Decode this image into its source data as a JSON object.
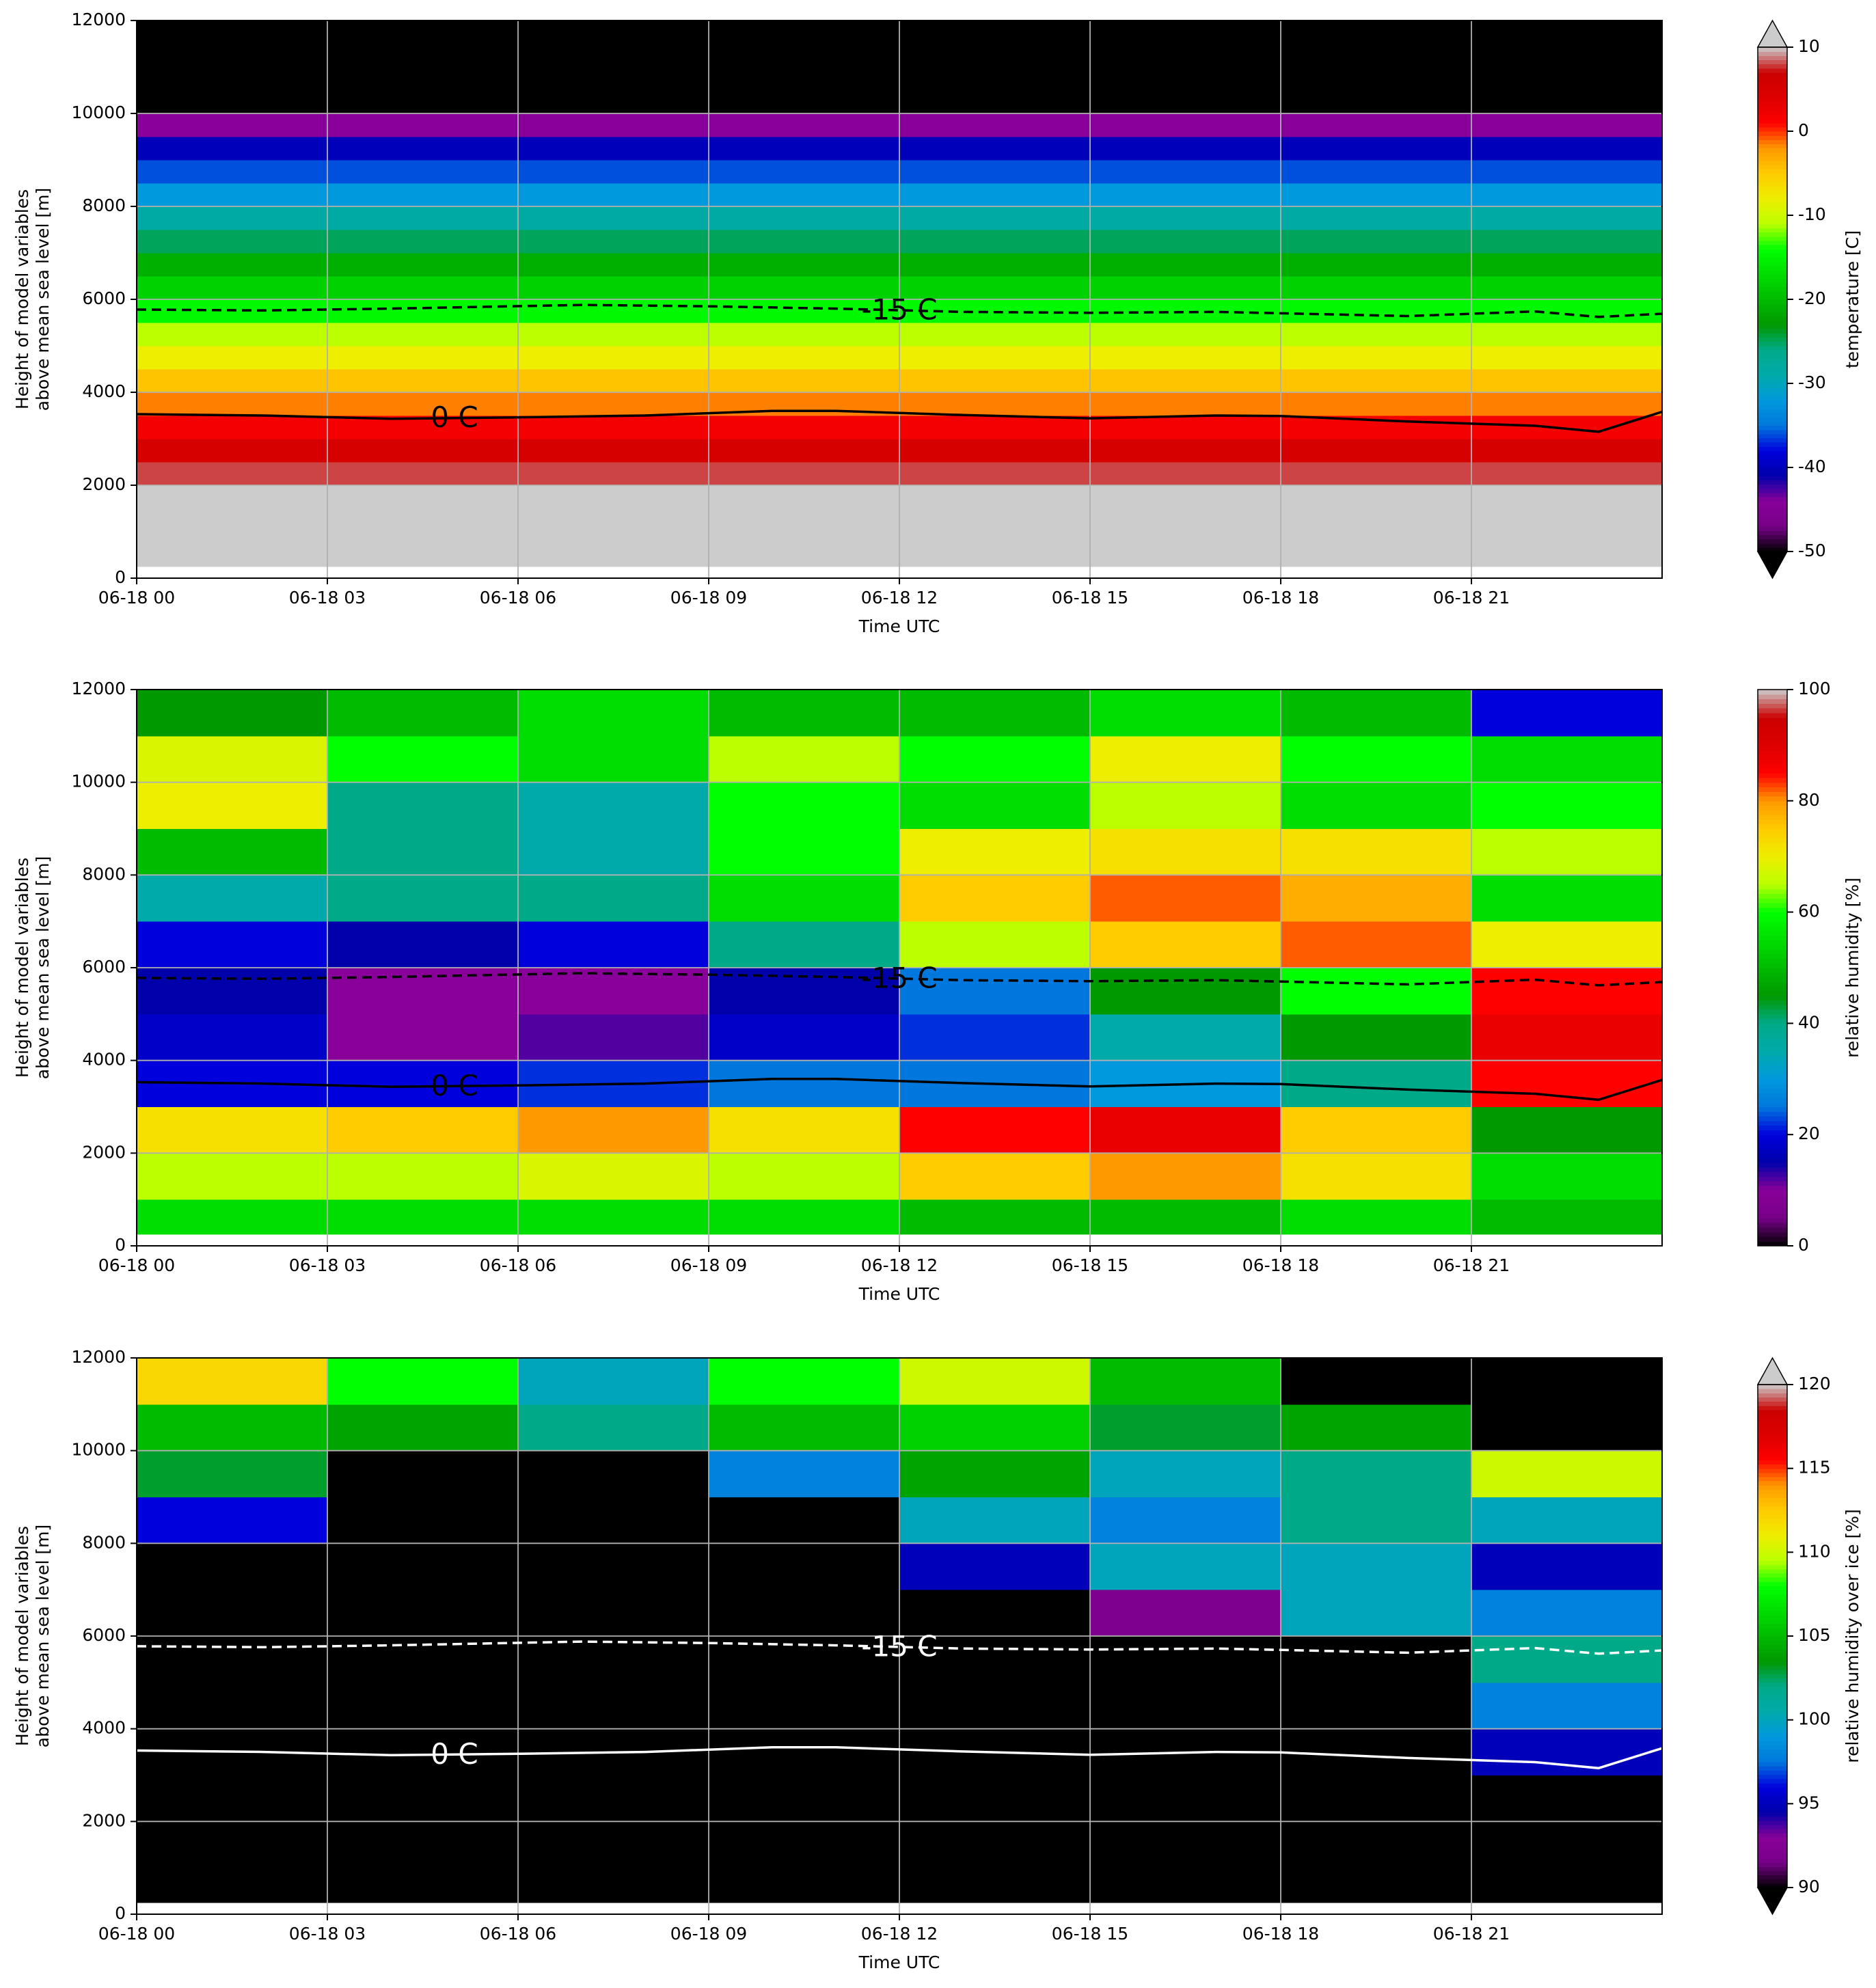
{
  "chart_data": [
    {
      "type": "heatmap",
      "x_label": "Time UTC",
      "y_label": [
        "Height of model variables",
        "above mean sea level [m]"
      ],
      "colorbar_label": "temperature [C]",
      "clim": [
        -50,
        10
      ],
      "cticks": [
        -50,
        -40,
        -30,
        -20,
        -10,
        0,
        10
      ],
      "extend": "both",
      "xlim": [
        0,
        24
      ],
      "ylim": [
        0,
        12000
      ],
      "yticks": [
        0,
        2000,
        4000,
        6000,
        8000,
        10000,
        12000
      ],
      "xticks": [
        {
          "value": 0,
          "label": "06-18 00"
        },
        {
          "value": 3,
          "label": "06-18 03"
        },
        {
          "value": 6,
          "label": "06-18 06"
        },
        {
          "value": 9,
          "label": "06-18 09"
        },
        {
          "value": 12,
          "label": "06-18 12"
        },
        {
          "value": 15,
          "label": "06-18 15"
        },
        {
          "value": 18,
          "label": "06-18 18"
        },
        {
          "value": 21,
          "label": "06-18 21"
        }
      ],
      "grid": true,
      "contour_color": "#000000",
      "height_edges": [
        250,
        500,
        1000,
        1500,
        2000,
        2500,
        3000,
        3500,
        4000,
        4500,
        5000,
        5500,
        6000,
        6500,
        7000,
        7500,
        8000,
        8500,
        9000,
        9500,
        10000,
        10500,
        11000,
        11500,
        12000
      ],
      "values": [
        20,
        18,
        15,
        12,
        8,
        5,
        2,
        -1.5,
        -4.5,
        -8,
        -11,
        -14.5,
        -18,
        -21,
        -25,
        -28.5,
        -32,
        -36,
        -40,
        -44,
        -52,
        -55,
        -56,
        -57
      ],
      "contours": [
        {
          "label": "0 C",
          "linestyle": "solid",
          "x": [
            0,
            2,
            4,
            6,
            8,
            10,
            11,
            13,
            15,
            17,
            18,
            20,
            22,
            23,
            24
          ],
          "values": [
            3530,
            3500,
            3430,
            3460,
            3500,
            3600,
            3600,
            3510,
            3440,
            3500,
            3490,
            3370,
            3280,
            3150,
            3580
          ]
        },
        {
          "label": "-15 C",
          "linestyle": "dashed",
          "x": [
            0,
            2,
            4,
            7,
            9,
            11,
            13,
            15,
            17,
            18,
            20,
            22,
            23,
            24
          ],
          "values": [
            5780,
            5760,
            5800,
            5880,
            5850,
            5800,
            5730,
            5710,
            5730,
            5700,
            5640,
            5740,
            5620,
            5690
          ]
        }
      ]
    },
    {
      "type": "heatmap",
      "x_label": "Time UTC",
      "y_label": [
        "Height of model variables",
        "above mean sea level [m]"
      ],
      "colorbar_label": "relative humidity [%]",
      "clim": [
        0,
        100
      ],
      "cticks": [
        0,
        20,
        40,
        60,
        80,
        100
      ],
      "extend": "neither",
      "xlim": [
        0,
        24
      ],
      "ylim": [
        0,
        12000
      ],
      "yticks": [
        0,
        2000,
        4000,
        6000,
        8000,
        10000,
        12000
      ],
      "xticks": [
        {
          "value": 0,
          "label": "06-18 00"
        },
        {
          "value": 3,
          "label": "06-18 03"
        },
        {
          "value": 6,
          "label": "06-18 06"
        },
        {
          "value": 9,
          "label": "06-18 09"
        },
        {
          "value": 12,
          "label": "06-18 12"
        },
        {
          "value": 15,
          "label": "06-18 15"
        },
        {
          "value": 18,
          "label": "06-18 18"
        },
        {
          "value": 21,
          "label": "06-18 21"
        }
      ],
      "grid": true,
      "contour_color": "#000000",
      "time_edges": [
        0,
        3,
        6,
        9,
        12,
        15,
        18,
        21,
        24
      ],
      "height_edges": [
        250,
        1000,
        2000,
        3000,
        4000,
        5000,
        6000,
        7000,
        8000,
        9000,
        10000,
        11000,
        12000
      ],
      "values": [
        [
          55,
          55,
          55,
          55,
          50,
          50,
          55,
          50
        ],
        [
          65,
          65,
          68,
          65,
          75,
          80,
          72,
          55
        ],
        [
          72,
          75,
          80,
          72,
          85,
          88,
          75,
          45
        ],
        [
          20,
          20,
          22,
          25,
          25,
          30,
          40,
          85
        ],
        [
          18,
          10,
          12,
          18,
          22,
          35,
          45,
          88
        ],
        [
          15,
          10,
          10,
          15,
          25,
          45,
          60,
          85
        ],
        [
          20,
          15,
          20,
          40,
          65,
          75,
          82,
          70
        ],
        [
          35,
          40,
          40,
          55,
          75,
          82,
          78,
          55
        ],
        [
          50,
          40,
          35,
          60,
          70,
          72,
          72,
          65
        ],
        [
          70,
          40,
          35,
          60,
          55,
          65,
          55,
          60
        ],
        [
          68,
          60,
          55,
          65,
          60,
          70,
          60,
          55
        ],
        [
          45,
          50,
          55,
          50,
          50,
          55,
          50,
          20
        ]
      ]
    },
    {
      "type": "heatmap",
      "x_label": "Time UTC",
      "y_label": [
        "Height of model variables",
        "above mean sea level [m]"
      ],
      "colorbar_label": "relative humidity over ice [%]",
      "clim": [
        90,
        120
      ],
      "cticks": [
        90,
        95,
        100,
        105,
        110,
        115,
        120
      ],
      "extend": "both",
      "xlim": [
        0,
        24
      ],
      "ylim": [
        0,
        12000
      ],
      "yticks": [
        0,
        2000,
        4000,
        6000,
        8000,
        10000,
        12000
      ],
      "xticks": [
        {
          "value": 0,
          "label": "06-18 00"
        },
        {
          "value": 3,
          "label": "06-18 03"
        },
        {
          "value": 6,
          "label": "06-18 06"
        },
        {
          "value": 9,
          "label": "06-18 09"
        },
        {
          "value": 12,
          "label": "06-18 12"
        },
        {
          "value": 15,
          "label": "06-18 15"
        },
        {
          "value": 18,
          "label": "06-18 18"
        },
        {
          "value": 21,
          "label": "06-18 21"
        }
      ],
      "grid": true,
      "contour_color": "#ffffff",
      "time_edges": [
        0,
        3,
        6,
        9,
        12,
        15,
        18,
        21,
        24
      ],
      "height_edges": [
        250,
        1000,
        2000,
        3000,
        4000,
        5000,
        6000,
        7000,
        8000,
        9000,
        10000,
        11000,
        12000
      ],
      "values": [
        [
          80,
          80,
          80,
          80,
          80,
          80,
          80,
          80
        ],
        [
          80,
          80,
          80,
          80,
          80,
          80,
          80,
          80
        ],
        [
          80,
          80,
          80,
          80,
          80,
          80,
          80,
          80
        ],
        [
          80,
          80,
          80,
          80,
          80,
          80,
          80,
          95
        ],
        [
          80,
          80,
          80,
          80,
          80,
          80,
          80,
          98
        ],
        [
          80,
          80,
          80,
          80,
          80,
          80,
          85,
          102
        ],
        [
          80,
          80,
          80,
          80,
          80,
          92,
          100,
          98
        ],
        [
          80,
          80,
          80,
          80,
          95,
          100,
          100,
          95
        ],
        [
          96,
          80,
          80,
          80,
          100,
          98,
          102,
          100
        ],
        [
          103,
          85,
          85,
          98,
          104,
          100,
          102,
          110
        ],
        [
          105,
          104,
          102,
          105,
          106,
          103,
          104,
          80
        ],
        [
          112,
          108,
          100,
          108,
          110,
          105,
          80,
          80
        ]
      ]
    }
  ]
}
